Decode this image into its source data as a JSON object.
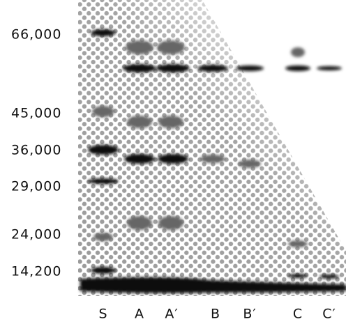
{
  "markers": [
    "66,000",
    "45,000",
    "36,000",
    "29,000",
    "24,000",
    "14,200"
  ],
  "lanes": [
    "S",
    "A",
    "A′",
    "B",
    "B′",
    "C",
    "C′"
  ]
}
